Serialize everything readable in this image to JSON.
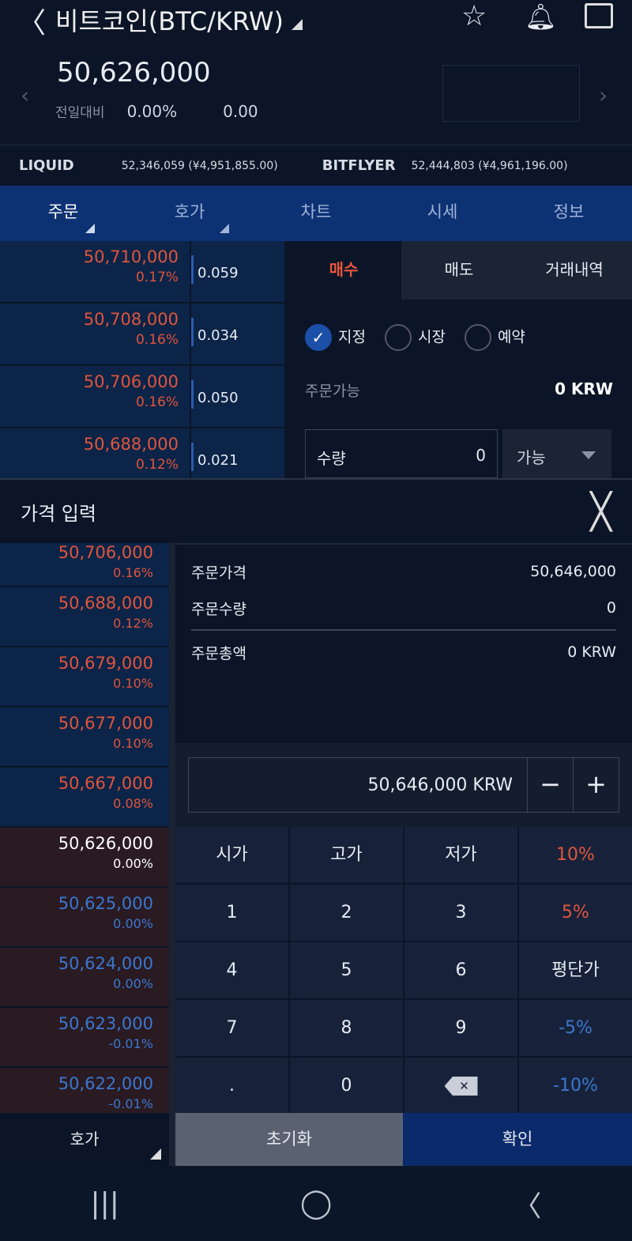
{
  "header": {
    "back_icon": "chevron-left",
    "title": "비트코인(BTC/KRW)",
    "icons": [
      "star",
      "bell",
      "share"
    ]
  },
  "ticker": {
    "price": "50,626,000",
    "change_label": "전일대비",
    "change_pct": "0.00%",
    "change_abs": "0.00"
  },
  "exchanges": [
    {
      "name": "LIQUID",
      "value": "52,346,059 (¥4,951,855.00)"
    },
    {
      "name": "BITFLYER",
      "value": "52,444,803 (¥4,961,196.00)"
    }
  ],
  "tabs": [
    "주문",
    "호가",
    "차트",
    "시세",
    "정보"
  ],
  "orderbook": [
    {
      "price": "50,710,000",
      "pct": "0.17%",
      "qty": "0.059"
    },
    {
      "price": "50,708,000",
      "pct": "0.16%",
      "qty": "0.034"
    },
    {
      "price": "50,706,000",
      "pct": "0.16%",
      "qty": "0.050"
    },
    {
      "price": "50,688,000",
      "pct": "0.12%",
      "qty": "0.021"
    }
  ],
  "order_tabs": [
    "매수",
    "매도",
    "거래내역"
  ],
  "order_types": [
    "지정",
    "시장",
    "예약"
  ],
  "available": {
    "label": "주문가능",
    "value": "0 KRW"
  },
  "quantity": {
    "label": "수량",
    "value": "0",
    "select": "가능"
  },
  "price_panel": {
    "title": "가격 입력",
    "list": [
      {
        "price": "50,706,000",
        "pct": "0.16%",
        "t": "ask"
      },
      {
        "price": "50,688,000",
        "pct": "0.12%",
        "t": "ask"
      },
      {
        "price": "50,679,000",
        "pct": "0.10%",
        "t": "ask"
      },
      {
        "price": "50,677,000",
        "pct": "0.10%",
        "t": "ask"
      },
      {
        "price": "50,667,000",
        "pct": "0.08%",
        "t": "ask"
      },
      {
        "price": "50,626,000",
        "pct": "0.00%",
        "t": "cur"
      },
      {
        "price": "50,625,000",
        "pct": "0.00%",
        "t": "bid"
      },
      {
        "price": "50,624,000",
        "pct": "0.00%",
        "t": "bid"
      },
      {
        "price": "50,623,000",
        "pct": "-0.01%",
        "t": "bid"
      },
      {
        "price": "50,622,000",
        "pct": "-0.01%",
        "t": "bid"
      }
    ],
    "info": [
      {
        "label": "주문가격",
        "value": "50,646,000"
      },
      {
        "label": "주문수량",
        "value": "0"
      },
      {
        "label": "주문총액",
        "value": "0 KRW"
      }
    ],
    "input_value": "50,646,000 KRW",
    "minus": "−",
    "plus": "+",
    "keys": [
      {
        "k": "시가"
      },
      {
        "k": "고가"
      },
      {
        "k": "저가"
      },
      {
        "k": "10%",
        "c": "red"
      },
      {
        "k": "1"
      },
      {
        "k": "2"
      },
      {
        "k": "3"
      },
      {
        "k": "5%",
        "c": "red"
      },
      {
        "k": "4"
      },
      {
        "k": "5"
      },
      {
        "k": "6"
      },
      {
        "k": "평단가"
      },
      {
        "k": "7"
      },
      {
        "k": "8"
      },
      {
        "k": "9"
      },
      {
        "k": "-5%",
        "c": "blue"
      },
      {
        "k": "."
      },
      {
        "k": "0"
      },
      {
        "k": "⌫",
        "icon": "backspace"
      },
      {
        "k": "-10%",
        "c": "blue"
      }
    ],
    "hoga": "호가",
    "reset": "초기화",
    "confirm": "확인"
  },
  "nav": [
    "|||",
    "◯",
    "〈"
  ]
}
